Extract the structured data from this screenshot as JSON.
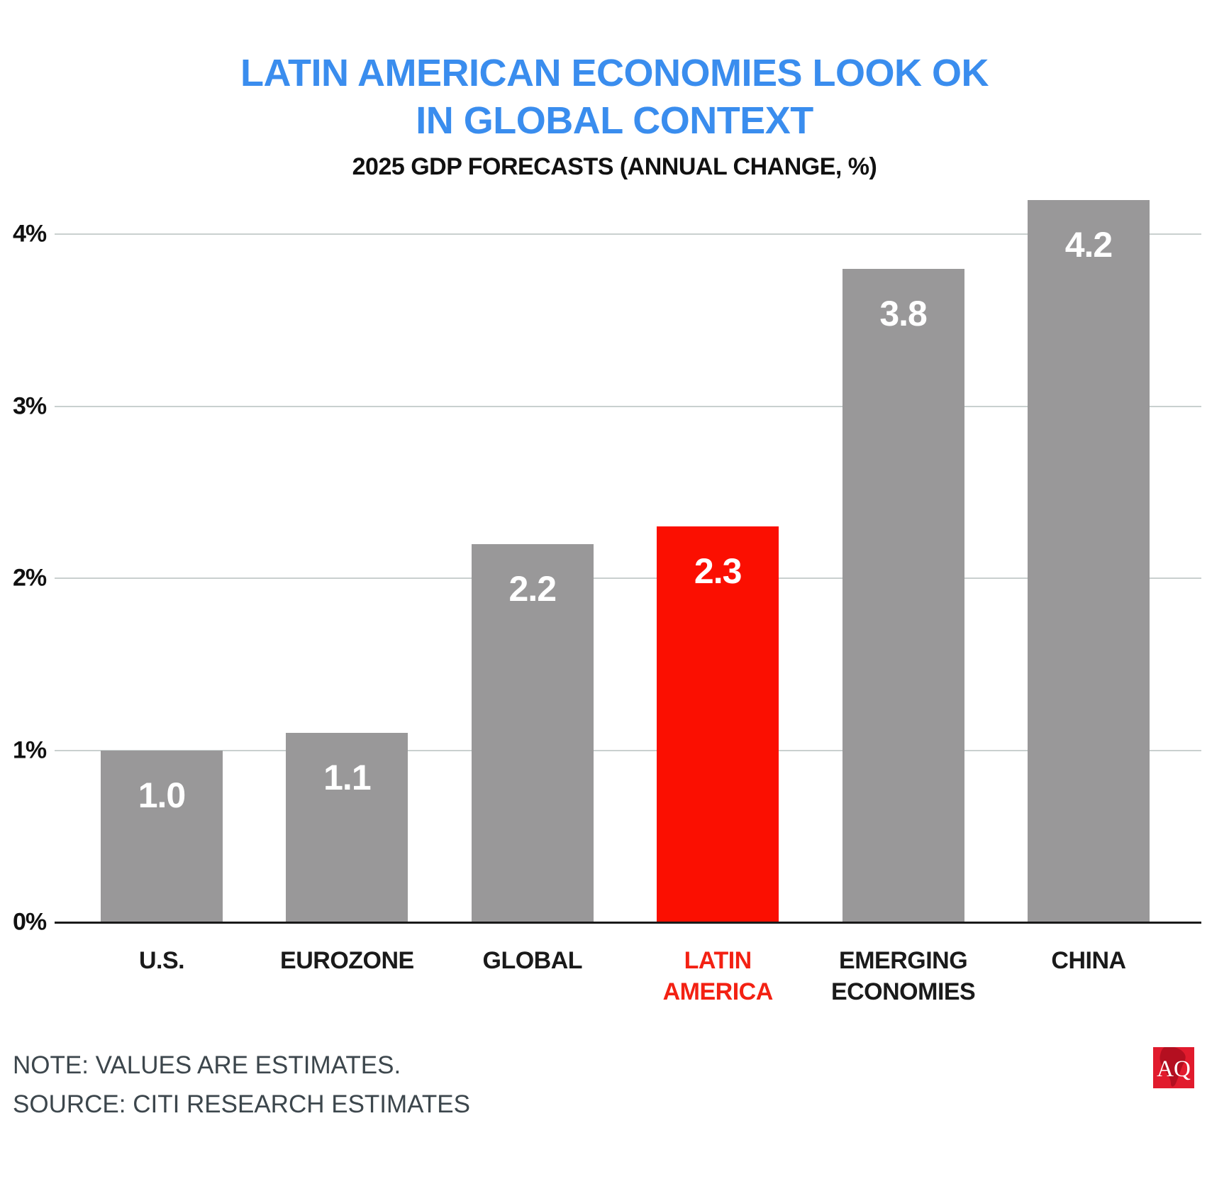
{
  "title": {
    "line1": "LATIN AMERICAN ECONOMIES LOOK OK",
    "line2": "IN GLOBAL CONTEXT"
  },
  "subtitle": "2025 GDP FORECASTS (ANNUAL CHANGE, %)",
  "chart_data": {
    "type": "bar",
    "title": "LATIN AMERICAN ECONOMIES LOOK OK IN GLOBAL CONTEXT",
    "subtitle": "2025 GDP FORECASTS (ANNUAL CHANGE, %)",
    "categories": [
      "U.S.",
      "EUROZONE",
      "GLOBAL",
      "LATIN\nAMERICA",
      "EMERGING\nECONOMIES",
      "CHINA"
    ],
    "values": [
      1.0,
      1.1,
      2.2,
      2.3,
      3.8,
      4.2
    ],
    "value_labels": [
      "1.0",
      "1.1",
      "2.2",
      "2.3",
      "3.8",
      "4.2"
    ],
    "highlight_index": 3,
    "highlight_category": "LATIN AMERICA",
    "xlabel": "",
    "ylabel": "",
    "ylim": [
      0,
      4.33
    ],
    "grid": true,
    "legend": "none",
    "y_ticks": [
      {
        "value": 0,
        "label": "0%"
      },
      {
        "value": 1,
        "label": "1%"
      },
      {
        "value": 2,
        "label": "2%"
      },
      {
        "value": 3,
        "label": "3%"
      },
      {
        "value": 4,
        "label": "4%"
      }
    ],
    "colors": {
      "bar": "#999899",
      "highlight": "#fb0f01",
      "category_highlight": "#f32113",
      "gridline": "#c9d0cf",
      "axis": "#1a1a1a",
      "value_label": "#ffffff"
    }
  },
  "footer": {
    "note": "NOTE: VALUES ARE ESTIMATES.",
    "source": "SOURCE: CITI RESEARCH ESTIMATES"
  },
  "logo": {
    "text": "AQ"
  },
  "colors": {
    "title": "#3a8dee",
    "subtitle": "#111111",
    "footer_text": "#3c464c",
    "logo_bg": "#e11b2d",
    "logo_map": "#b40f20",
    "logo_text": "#ffffff",
    "background": "#ffffff"
  }
}
